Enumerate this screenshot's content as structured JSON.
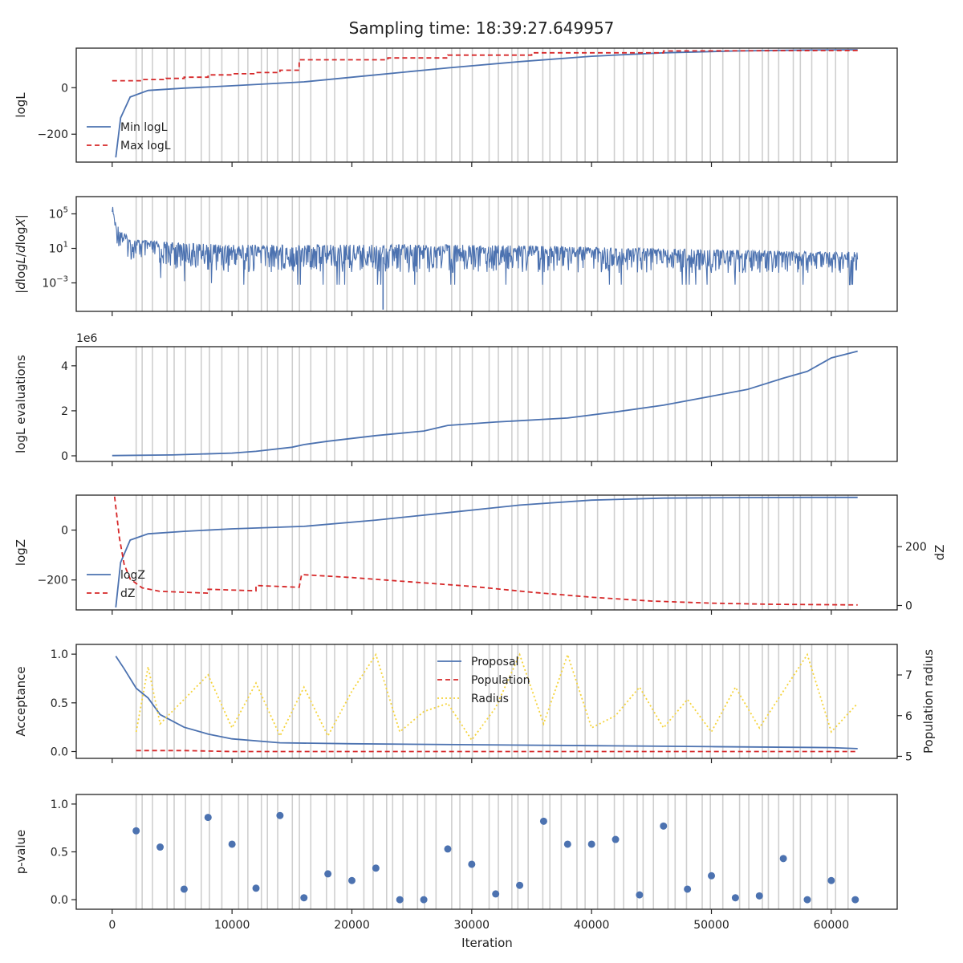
{
  "title": "Sampling time: 18:39:27.649957",
  "x_ticks": [
    "0",
    "10000",
    "20000",
    "30000",
    "40000",
    "50000",
    "60000"
  ],
  "x_tick_values": [
    0,
    10000,
    20000,
    30000,
    40000,
    50000,
    60000
  ],
  "xlabel": "Iteration",
  "colors": {
    "blue": "#4c72b0",
    "red": "#d62728",
    "yellow": "#f5d33b",
    "grid": "#cfcfcf",
    "axis": "#222222"
  },
  "chart_data": [
    {
      "type": "line",
      "ylabel": "logL",
      "xlim": [
        -3000,
        65500
      ],
      "ylim": [
        -320,
        170
      ],
      "yticks": [
        "0",
        "−200"
      ],
      "ytick_values": [
        0,
        -200
      ],
      "legend": [
        "Min logL",
        "Max logL"
      ],
      "legend_position": "lower-left",
      "series": [
        {
          "name": "Min logL",
          "style": "solid",
          "color": "#4c72b0",
          "x": [
            300,
            700,
            1500,
            3000,
            6000,
            10000,
            16000,
            22000,
            28000,
            34000,
            40000,
            46000,
            52000,
            58000,
            62200
          ],
          "y": [
            -300,
            -130,
            -40,
            -12,
            -2,
            8,
            25,
            55,
            85,
            112,
            135,
            150,
            158,
            162,
            163
          ]
        },
        {
          "name": "Max logL",
          "style": "dashed",
          "color": "#d62728",
          "x": [
            0,
            2500,
            2500,
            4500,
            4500,
            6000,
            6000,
            8000,
            8000,
            10000,
            10000,
            12000,
            12000,
            14000,
            14000,
            15600,
            15600,
            23000,
            23000,
            28000,
            28000,
            35000,
            35000,
            46000,
            46000,
            62200
          ],
          "y": [
            30,
            30,
            35,
            35,
            40,
            40,
            45,
            45,
            55,
            55,
            60,
            60,
            65,
            65,
            75,
            75,
            120,
            120,
            128,
            128,
            140,
            140,
            150,
            150,
            158,
            160
          ]
        }
      ]
    },
    {
      "type": "line",
      "ylabel": "|dlogL/dlogX|",
      "yscale": "log",
      "xlim": [
        -3000,
        65500
      ],
      "ylim_exp": [
        -6.3,
        7
      ],
      "yticks": [
        "10^5",
        "10^1",
        "10^-3"
      ],
      "ytick_exps": [
        5,
        1,
        -3
      ],
      "series": [
        {
          "name": "",
          "style": "noisy",
          "color": "#4c72b0",
          "x": [
            0,
            300,
            1500,
            5000,
            10000,
            20000,
            30000,
            40000,
            50000,
            60000,
            62200
          ],
          "y_exp_top": [
            6.2,
            4.0,
            2.2,
            1.8,
            1.6,
            1.6,
            1.6,
            1.3,
            1.0,
            0.7,
            0.7
          ],
          "y_exp_bottom": [
            5.0,
            1.5,
            -0.5,
            -1.5,
            -2.0,
            -2.0,
            -2.0,
            -2.0,
            -2.0,
            -2.0,
            -2.0
          ]
        }
      ]
    },
    {
      "type": "line",
      "ylabel": "logL evaluations",
      "offset_label": "1e6",
      "xlim": [
        -3000,
        65500
      ],
      "ylim": [
        -0.25,
        4.85
      ],
      "yticks": [
        "0",
        "2",
        "4"
      ],
      "ytick_values": [
        0,
        2,
        4
      ],
      "series": [
        {
          "name": "",
          "style": "solid",
          "color": "#4c72b0",
          "x": [
            0,
            5000,
            10000,
            12000,
            15000,
            16000,
            18000,
            22000,
            26000,
            28000,
            32000,
            38000,
            42000,
            46000,
            50000,
            53000,
            56000,
            58000,
            60000,
            62200
          ],
          "y": [
            0.01,
            0.04,
            0.12,
            0.2,
            0.38,
            0.5,
            0.65,
            0.9,
            1.1,
            1.35,
            1.5,
            1.68,
            1.95,
            2.25,
            2.65,
            2.95,
            3.45,
            3.75,
            4.35,
            4.65
          ]
        }
      ]
    },
    {
      "type": "line",
      "ylabel": "logZ",
      "ylabel_right": "dZ",
      "xlim": [
        -3000,
        65500
      ],
      "ylim": [
        -320,
        140
      ],
      "ylim_right": [
        -15,
        375
      ],
      "yticks": [
        "0",
        "−200"
      ],
      "ytick_values": [
        0,
        -200
      ],
      "yticks_right": [
        "200",
        "0"
      ],
      "ytick_values_right": [
        200,
        0
      ],
      "legend": [
        "logZ",
        "dZ"
      ],
      "legend_position": "lower-left",
      "series": [
        {
          "name": "logZ",
          "style": "solid",
          "color": "#4c72b0",
          "axis": "left",
          "x": [
            300,
            700,
            1500,
            3000,
            6000,
            10000,
            16000,
            22000,
            28000,
            34000,
            40000,
            46000,
            52000,
            58000,
            62200
          ],
          "y": [
            -310,
            -130,
            -40,
            -15,
            -5,
            5,
            15,
            40,
            70,
            100,
            120,
            128,
            130,
            131,
            131
          ]
        },
        {
          "name": "dZ",
          "style": "dashed",
          "color": "#d62728",
          "axis": "right",
          "x": [
            200,
            600,
            1000,
            1500,
            2500,
            4000,
            6000,
            8000,
            8000,
            12000,
            12000,
            15600,
            15800,
            20000,
            25000,
            30000,
            35000,
            40000,
            45000,
            50000,
            55000,
            62200
          ],
          "y": [
            370,
            230,
            140,
            90,
            60,
            48,
            45,
            42,
            55,
            50,
            68,
            62,
            105,
            95,
            80,
            65,
            45,
            28,
            15,
            8,
            4,
            2
          ]
        }
      ]
    },
    {
      "type": "line",
      "ylabel": "Acceptance",
      "ylabel_right": "Population radius",
      "xlim": [
        -3000,
        65500
      ],
      "ylim": [
        -0.07,
        1.1
      ],
      "ylim_right": [
        4.95,
        7.75
      ],
      "yticks": [
        "1.0",
        "0.5",
        "0.0"
      ],
      "ytick_values": [
        1.0,
        0.5,
        0.0
      ],
      "yticks_right": [
        "7",
        "6",
        "5"
      ],
      "ytick_values_right": [
        7,
        6,
        5
      ],
      "legend": [
        "Proposal",
        "Population",
        "Radius"
      ],
      "legend_position": "top-center",
      "series": [
        {
          "name": "Proposal",
          "style": "solid",
          "color": "#4c72b0",
          "axis": "left",
          "x": [
            300,
            1000,
            2000,
            3000,
            4000,
            6000,
            8000,
            10000,
            14000,
            20000,
            30000,
            40000,
            50000,
            60000,
            62200
          ],
          "y": [
            0.98,
            0.85,
            0.65,
            0.55,
            0.38,
            0.25,
            0.18,
            0.13,
            0.09,
            0.08,
            0.07,
            0.06,
            0.05,
            0.04,
            0.03
          ]
        },
        {
          "name": "Population",
          "style": "dashed",
          "color": "#d62728",
          "axis": "left",
          "x": [
            2000,
            6000,
            10000,
            20000,
            40000,
            62200
          ],
          "y": [
            0.01,
            0.01,
            0.0,
            0.0,
            0.0,
            0.0
          ]
        },
        {
          "name": "Radius",
          "style": "dotted",
          "color": "#f5d33b",
          "axis": "right",
          "x": [
            2000,
            3000,
            4000,
            6000,
            8000,
            10000,
            12000,
            14000,
            16000,
            18000,
            20000,
            22000,
            24000,
            26000,
            28000,
            30000,
            32000,
            34000,
            36000,
            38000,
            40000,
            42000,
            44000,
            46000,
            48000,
            50000,
            52000,
            54000,
            56000,
            58000,
            60000,
            62200
          ],
          "y": [
            5.6,
            7.2,
            5.8,
            6.4,
            7.0,
            5.7,
            6.8,
            5.5,
            6.7,
            5.5,
            6.6,
            7.5,
            5.6,
            6.1,
            6.3,
            5.4,
            6.2,
            7.5,
            5.8,
            7.5,
            5.7,
            6.0,
            6.7,
            5.7,
            6.4,
            5.6,
            6.7,
            5.7,
            6.6,
            7.5,
            5.6,
            6.3
          ]
        }
      ]
    },
    {
      "type": "scatter",
      "ylabel": "p-value",
      "xlim": [
        -3000,
        65500
      ],
      "ylim": [
        -0.1,
        1.1
      ],
      "yticks": [
        "1.0",
        "0.5",
        "0.0"
      ],
      "ytick_values": [
        1.0,
        0.5,
        0.0
      ],
      "series": [
        {
          "name": "",
          "color": "#4c72b0",
          "x": [
            2000,
            4000,
            6000,
            8000,
            10000,
            12000,
            14000,
            16000,
            18000,
            20000,
            22000,
            24000,
            26000,
            28000,
            30000,
            32000,
            34000,
            36000,
            38000,
            40000,
            42000,
            44000,
            46000,
            48000,
            50000,
            52000,
            54000,
            56000,
            58000,
            60000,
            62000
          ],
          "y": [
            0.72,
            0.55,
            0.11,
            0.86,
            0.58,
            0.12,
            0.88,
            0.02,
            0.27,
            0.2,
            0.33,
            0.0,
            0.0,
            0.53,
            0.37,
            0.06,
            0.15,
            0.82,
            0.58,
            0.58,
            0.63,
            0.05,
            0.77,
            0.11,
            0.25,
            0.02,
            0.04,
            0.43,
            0.0,
            0.2,
            0.0
          ]
        }
      ]
    }
  ]
}
